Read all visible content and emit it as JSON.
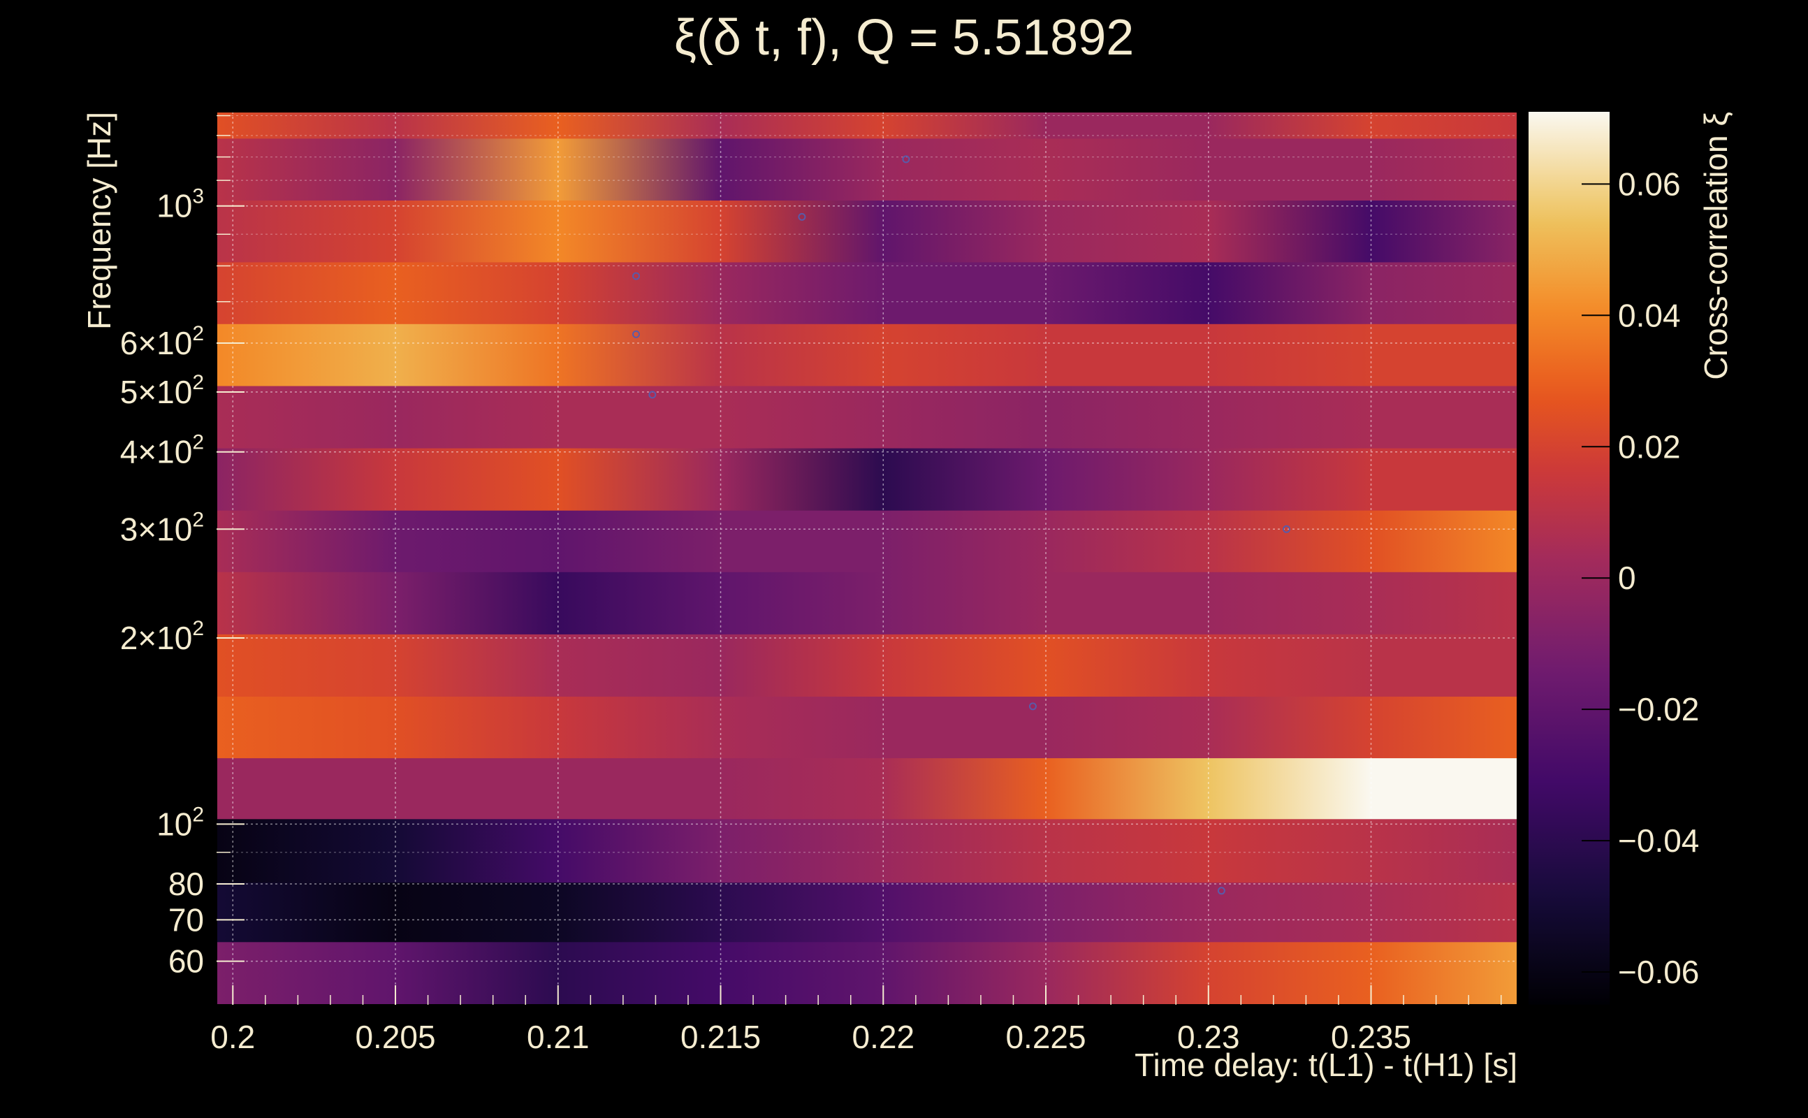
{
  "chart_data": {
    "type": "heatmap",
    "title": "ξ(δ t, f), Q = 5.51892",
    "xlabel": "Time delay: t(L1) - t(H1) [s]",
    "ylabel": "Frequency [Hz]",
    "colorbar_label": "Cross-correlation ξ",
    "xlim": [
      0.1995,
      0.2395
    ],
    "ylim": [
      51,
      1420
    ],
    "yscale": "log",
    "grid": true,
    "x_ticks": [
      {
        "value": 0.2,
        "label": "0.2"
      },
      {
        "value": 0.205,
        "label": "0.205"
      },
      {
        "value": 0.21,
        "label": "0.21"
      },
      {
        "value": 0.215,
        "label": "0.215"
      },
      {
        "value": 0.22,
        "label": "0.22"
      },
      {
        "value": 0.225,
        "label": "0.225"
      },
      {
        "value": 0.23,
        "label": "0.23"
      },
      {
        "value": 0.235,
        "label": "0.235"
      }
    ],
    "y_ticks": [
      {
        "value": 60,
        "base": "60",
        "exp": ""
      },
      {
        "value": 70,
        "base": "70",
        "exp": ""
      },
      {
        "value": 80,
        "base": "80",
        "exp": ""
      },
      {
        "value": 100,
        "base": "10",
        "exp": "2"
      },
      {
        "value": 200,
        "base": "2×10",
        "exp": "2"
      },
      {
        "value": 300,
        "base": "3×10",
        "exp": "2"
      },
      {
        "value": 400,
        "base": "4×10",
        "exp": "2"
      },
      {
        "value": 500,
        "base": "5×10",
        "exp": "2"
      },
      {
        "value": 600,
        "base": "6×10",
        "exp": "2"
      },
      {
        "value": 1000,
        "base": "10",
        "exp": "3"
      }
    ],
    "colorbar_range": [
      -0.065,
      0.071
    ],
    "colorbar_ticks": [
      {
        "value": 0.06,
        "label": "0.06"
      },
      {
        "value": 0.04,
        "label": "0.04"
      },
      {
        "value": 0.02,
        "label": "0.02"
      },
      {
        "value": 0,
        "label": "0"
      },
      {
        "value": -0.02,
        "label": "−0.02"
      },
      {
        "value": -0.04,
        "label": "−0.04"
      },
      {
        "value": -0.06,
        "label": "−0.06"
      }
    ],
    "bands": [
      {
        "f_low": 51,
        "f_high": 64.5,
        "points": [
          [
            0.1995,
            -0.01
          ],
          [
            0.205,
            -0.02
          ],
          [
            0.21,
            -0.04
          ],
          [
            0.215,
            -0.03
          ],
          [
            0.22,
            -0.02
          ],
          [
            0.225,
            0.0
          ],
          [
            0.23,
            0.02
          ],
          [
            0.235,
            0.03
          ],
          [
            0.2395,
            0.045
          ]
        ]
      },
      {
        "f_low": 64.5,
        "f_high": 80.5,
        "points": [
          [
            0.1995,
            -0.05
          ],
          [
            0.205,
            -0.06
          ],
          [
            0.21,
            -0.055
          ],
          [
            0.215,
            -0.04
          ],
          [
            0.22,
            -0.025
          ],
          [
            0.225,
            -0.01
          ],
          [
            0.23,
            0.0
          ],
          [
            0.235,
            0.005
          ],
          [
            0.2395,
            0.01
          ]
        ]
      },
      {
        "f_low": 80.5,
        "f_high": 102,
        "points": [
          [
            0.1995,
            -0.06
          ],
          [
            0.205,
            -0.05
          ],
          [
            0.21,
            -0.03
          ],
          [
            0.215,
            -0.01
          ],
          [
            0.22,
            0.0
          ],
          [
            0.225,
            0.01
          ],
          [
            0.23,
            0.015
          ],
          [
            0.235,
            0.01
          ],
          [
            0.2395,
            0.005
          ]
        ]
      },
      {
        "f_low": 102,
        "f_high": 128,
        "points": [
          [
            0.1995,
            0.0
          ],
          [
            0.205,
            0.0
          ],
          [
            0.21,
            0.0
          ],
          [
            0.215,
            0.0
          ],
          [
            0.22,
            0.005
          ],
          [
            0.225,
            0.03
          ],
          [
            0.23,
            0.055
          ],
          [
            0.235,
            0.071
          ],
          [
            0.2395,
            0.071
          ]
        ]
      },
      {
        "f_low": 128,
        "f_high": 161,
        "points": [
          [
            0.1995,
            0.03
          ],
          [
            0.205,
            0.025
          ],
          [
            0.21,
            0.015
          ],
          [
            0.215,
            0.005
          ],
          [
            0.22,
            0.0
          ],
          [
            0.225,
            0.0
          ],
          [
            0.23,
            0.005
          ],
          [
            0.235,
            0.02
          ],
          [
            0.2395,
            0.03
          ]
        ]
      },
      {
        "f_low": 161,
        "f_high": 203,
        "points": [
          [
            0.1995,
            0.025
          ],
          [
            0.205,
            0.02
          ],
          [
            0.21,
            0.005
          ],
          [
            0.215,
            0.0
          ],
          [
            0.22,
            0.015
          ],
          [
            0.225,
            0.025
          ],
          [
            0.23,
            0.015
          ],
          [
            0.235,
            0.01
          ],
          [
            0.2395,
            0.01
          ]
        ]
      },
      {
        "f_low": 203,
        "f_high": 256,
        "points": [
          [
            0.1995,
            0.01
          ],
          [
            0.205,
            -0.01
          ],
          [
            0.21,
            -0.035
          ],
          [
            0.215,
            -0.02
          ],
          [
            0.22,
            -0.01
          ],
          [
            0.225,
            0.0
          ],
          [
            0.23,
            0.0
          ],
          [
            0.235,
            0.005
          ],
          [
            0.2395,
            0.01
          ]
        ]
      },
      {
        "f_low": 256,
        "f_high": 322,
        "points": [
          [
            0.1995,
            0.005
          ],
          [
            0.205,
            -0.015
          ],
          [
            0.21,
            -0.02
          ],
          [
            0.215,
            -0.01
          ],
          [
            0.22,
            -0.01
          ],
          [
            0.225,
            0.0
          ],
          [
            0.23,
            0.01
          ],
          [
            0.235,
            0.025
          ],
          [
            0.2395,
            0.04
          ]
        ]
      },
      {
        "f_low": 322,
        "f_high": 406,
        "points": [
          [
            0.1995,
            -0.005
          ],
          [
            0.205,
            0.015
          ],
          [
            0.21,
            0.025
          ],
          [
            0.215,
            0.0
          ],
          [
            0.22,
            -0.04
          ],
          [
            0.225,
            -0.015
          ],
          [
            0.23,
            0.0
          ],
          [
            0.235,
            0.015
          ],
          [
            0.2395,
            0.015
          ]
        ]
      },
      {
        "f_low": 406,
        "f_high": 512,
        "points": [
          [
            0.1995,
            0.005
          ],
          [
            0.205,
            0.0
          ],
          [
            0.21,
            0.005
          ],
          [
            0.215,
            0.005
          ],
          [
            0.22,
            0.0
          ],
          [
            0.225,
            -0.005
          ],
          [
            0.23,
            0.0
          ],
          [
            0.235,
            0.005
          ],
          [
            0.2395,
            0.005
          ]
        ]
      },
      {
        "f_low": 512,
        "f_high": 645,
        "points": [
          [
            0.1995,
            0.04
          ],
          [
            0.205,
            0.05
          ],
          [
            0.21,
            0.035
          ],
          [
            0.215,
            0.01
          ],
          [
            0.22,
            0.02
          ],
          [
            0.225,
            0.015
          ],
          [
            0.23,
            0.015
          ],
          [
            0.235,
            0.02
          ],
          [
            0.2395,
            0.02
          ]
        ]
      },
      {
        "f_low": 645,
        "f_high": 812,
        "points": [
          [
            0.1995,
            0.02
          ],
          [
            0.205,
            0.03
          ],
          [
            0.21,
            0.02
          ],
          [
            0.215,
            0.0
          ],
          [
            0.22,
            -0.015
          ],
          [
            0.225,
            -0.015
          ],
          [
            0.23,
            -0.03
          ],
          [
            0.235,
            -0.005
          ],
          [
            0.2395,
            0.0
          ]
        ]
      },
      {
        "f_low": 812,
        "f_high": 1022,
        "points": [
          [
            0.1995,
            0.01
          ],
          [
            0.205,
            0.02
          ],
          [
            0.21,
            0.04
          ],
          [
            0.215,
            0.02
          ],
          [
            0.22,
            -0.02
          ],
          [
            0.225,
            0.0
          ],
          [
            0.23,
            0.005
          ],
          [
            0.235,
            -0.03
          ],
          [
            0.2395,
            -0.005
          ]
        ]
      },
      {
        "f_low": 1022,
        "f_high": 1287,
        "points": [
          [
            0.1995,
            0.01
          ],
          [
            0.205,
            -0.005
          ],
          [
            0.21,
            0.045
          ],
          [
            0.215,
            -0.02
          ],
          [
            0.22,
            0.0
          ],
          [
            0.225,
            0.005
          ],
          [
            0.23,
            0.0
          ],
          [
            0.235,
            0.0
          ],
          [
            0.2395,
            0.005
          ]
        ]
      },
      {
        "f_low": 1287,
        "f_high": 1420,
        "points": [
          [
            0.1995,
            0.025
          ],
          [
            0.205,
            0.01
          ],
          [
            0.21,
            0.03
          ],
          [
            0.215,
            0.005
          ],
          [
            0.22,
            0.02
          ],
          [
            0.225,
            0.0
          ],
          [
            0.23,
            0.0
          ],
          [
            0.235,
            0.02
          ],
          [
            0.2395,
            0.015
          ]
        ]
      }
    ],
    "markers": [
      {
        "x": 0.2207,
        "f": 1190
      },
      {
        "x": 0.2175,
        "f": 960
      },
      {
        "x": 0.2124,
        "f": 770
      },
      {
        "x": 0.2124,
        "f": 620
      },
      {
        "x": 0.2129,
        "f": 495
      },
      {
        "x": 0.2324,
        "f": 300
      },
      {
        "x": 0.2246,
        "f": 155
      },
      {
        "x": 0.2304,
        "f": 78
      }
    ]
  }
}
